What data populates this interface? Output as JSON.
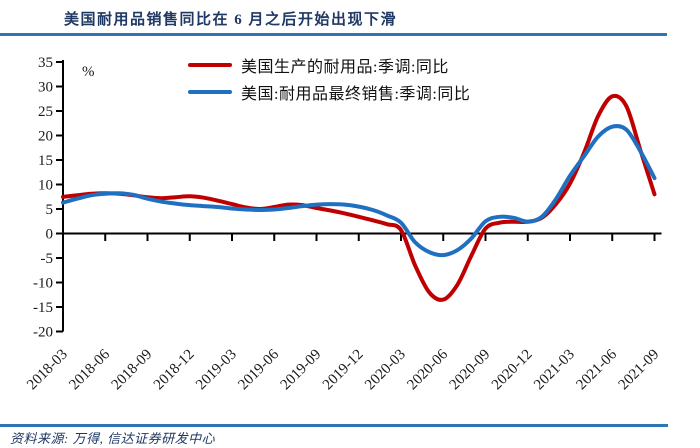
{
  "page": {
    "title": "美国耐用品销售同比在 6 月之后开始出现下滑",
    "source_note": "资料来源: 万得, 信达证券研发中心"
  },
  "colors": {
    "title_text": "#1f3864",
    "rule_blue": "#2e75b6",
    "axis_black": "#000000",
    "series_red": "#c00000",
    "series_blue": "#1f70c1"
  },
  "chart_data": {
    "type": "line",
    "title": "美国耐用品销售同比在 6 月之后开始出现下滑",
    "unit_label": "%",
    "ylim": [
      -20,
      35
    ],
    "ytick_step": 5,
    "grid": false,
    "legend_position": "top-center",
    "x": [
      "2018-03",
      "2018-04",
      "2018-05",
      "2018-06",
      "2018-07",
      "2018-08",
      "2018-09",
      "2018-10",
      "2018-11",
      "2018-12",
      "2019-01",
      "2019-02",
      "2019-03",
      "2019-04",
      "2019-05",
      "2019-06",
      "2019-07",
      "2019-08",
      "2019-09",
      "2019-10",
      "2019-11",
      "2019-12",
      "2020-01",
      "2020-02",
      "2020-03",
      "2020-04",
      "2020-05",
      "2020-06",
      "2020-07",
      "2020-08",
      "2020-09",
      "2020-10",
      "2020-11",
      "2020-12",
      "2021-01",
      "2021-02",
      "2021-03",
      "2021-04",
      "2021-05",
      "2021-06",
      "2021-07",
      "2021-08",
      "2021-09"
    ],
    "xtick_labels": [
      "2018-03",
      "2018-06",
      "2018-09",
      "2018-12",
      "2019-03",
      "2019-06",
      "2019-09",
      "2019-12",
      "2020-03",
      "2020-06",
      "2020-09",
      "2020-12",
      "2021-03",
      "2021-06",
      "2021-09"
    ],
    "series": [
      {
        "name": "美国生产的耐用品:季调:同比",
        "color": "#c00000",
        "values": [
          7.5,
          7.8,
          8.1,
          8.2,
          8.1,
          7.8,
          7.4,
          7.2,
          7.4,
          7.6,
          7.3,
          6.7,
          6.0,
          5.3,
          5.0,
          5.4,
          5.9,
          5.8,
          5.2,
          4.7,
          4.1,
          3.4,
          2.7,
          1.9,
          0.7,
          -6.5,
          -12.0,
          -13.5,
          -10.5,
          -4.5,
          1.0,
          2.2,
          2.4,
          2.4,
          3.2,
          6.0,
          10.2,
          16.5,
          24.0,
          28.0,
          26.0,
          17.0,
          8.0
        ]
      },
      {
        "name": "美国:耐用品最终销售:季调:同比",
        "color": "#1f70c1",
        "values": [
          6.3,
          7.1,
          7.8,
          8.1,
          8.2,
          7.9,
          7.1,
          6.5,
          6.1,
          5.8,
          5.6,
          5.4,
          5.1,
          4.9,
          4.8,
          4.9,
          5.2,
          5.6,
          5.9,
          6.0,
          5.9,
          5.5,
          4.8,
          3.7,
          2.2,
          -1.8,
          -3.8,
          -4.4,
          -3.4,
          -1.0,
          2.5,
          3.4,
          3.2,
          2.4,
          3.4,
          7.0,
          11.8,
          15.8,
          19.8,
          21.8,
          21.2,
          16.8,
          11.3
        ]
      }
    ]
  }
}
